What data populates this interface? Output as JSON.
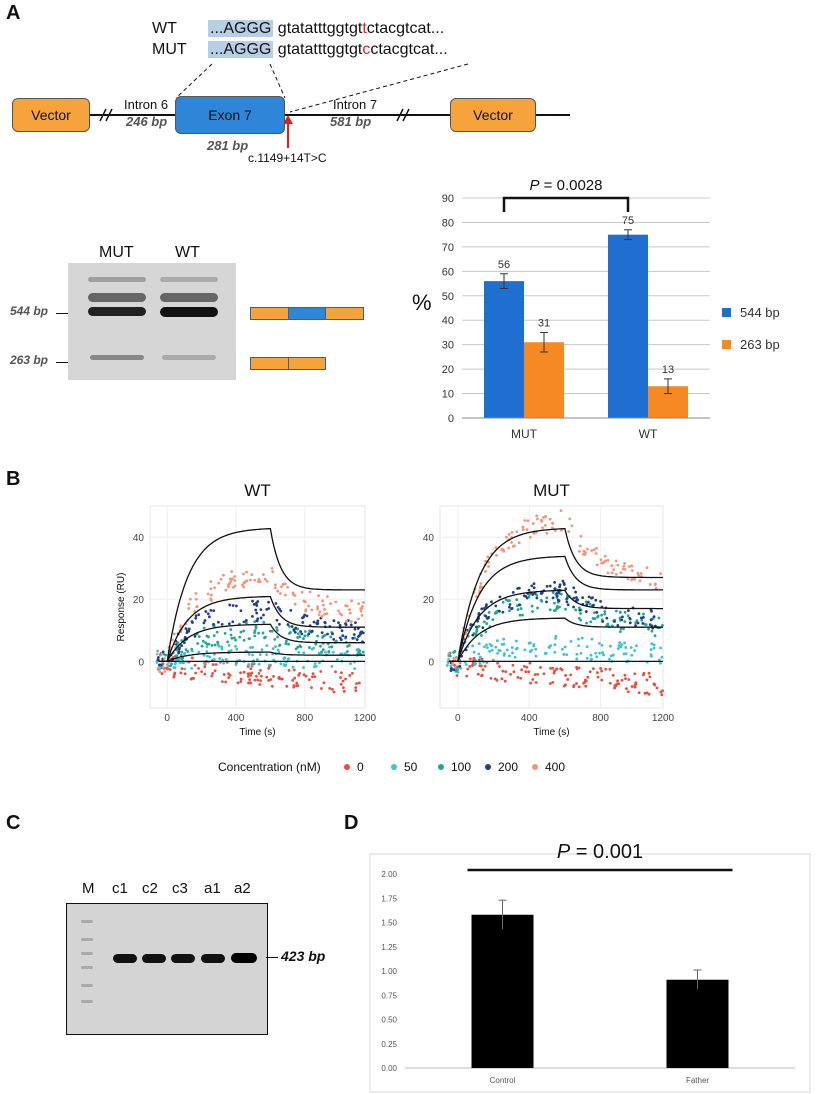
{
  "panels": {
    "a": "A",
    "b": "B",
    "c": "C",
    "d": "D"
  },
  "panel_a": {
    "seq_rows": [
      {
        "label": "WT",
        "exon": "...AGGG",
        "pre": "gtatatttggtgt",
        "variant": "t",
        "post": "ctacgtcat..."
      },
      {
        "label": "MUT",
        "exon": "...AGGG",
        "pre": "gtatatttggtgt",
        "variant": "c",
        "post": "ctacgtcat..."
      }
    ],
    "vector_left": "Vector",
    "vector_right": "Vector",
    "exon": "Exon 7",
    "intron6": "Intron 6",
    "intron6_size": "246 bp",
    "intron7": "Intron 7",
    "intron7_size": "581 bp",
    "exon_size": "281 bp",
    "variant_name": "c.1149+14T>C",
    "gel_lanes": [
      "MUT",
      "WT"
    ],
    "gel_size_544": "544 bp",
    "gel_size_263": "263 bp",
    "colors": {
      "vector": "#f5a33a",
      "exon": "#2f85d8",
      "red": "#e02020"
    }
  },
  "chart_data": [
    {
      "type": "bar",
      "title": "",
      "annotation": "P = 0.0028",
      "p_label": "P",
      "p_value": "= 0.0028",
      "categories": [
        "MUT",
        "WT"
      ],
      "ylabel": "%",
      "ylim": [
        0,
        90
      ],
      "yticks": [
        "0",
        "10",
        "20",
        "30",
        "40",
        "50",
        "60",
        "70",
        "80",
        "90"
      ],
      "series": [
        {
          "name": "544 bp",
          "values": [
            56,
            75
          ],
          "errors": [
            3,
            2
          ],
          "color": "#1f6fd1"
        },
        {
          "name": "263 bp",
          "values": [
            31,
            13
          ],
          "errors": [
            4,
            3
          ],
          "color": "#f58a25"
        }
      ],
      "data_labels": [
        "56",
        "75",
        "31",
        "13"
      ],
      "legend": "right"
    },
    {
      "type": "scatter",
      "title": "WT",
      "xlabel": "Time (s)",
      "ylabel": "Response (RU)",
      "xlim": [
        -100,
        1150
      ],
      "ylim": [
        -15,
        50
      ],
      "xticks": [
        "0",
        "400",
        "800",
        "1200"
      ],
      "yticks": [
        "0",
        "20",
        "40"
      ],
      "legend_title": "Concentration (nM)",
      "concentrations": [
        "0",
        "50",
        "100",
        "200",
        "400"
      ],
      "series_plateaus": [
        -7,
        2,
        10,
        17,
        28
      ],
      "fit_plateaus": [
        0,
        3,
        12,
        21,
        43
      ],
      "fit_ends": [
        0,
        2,
        6,
        11,
        23
      ]
    },
    {
      "type": "scatter",
      "title": "MUT",
      "xlabel": "Time (s)",
      "ylabel": "",
      "xlim": [
        -100,
        1150
      ],
      "ylim": [
        -15,
        50
      ],
      "xticks": [
        "0",
        "400",
        "800",
        "1200"
      ],
      "yticks": [
        "0",
        "20",
        "40"
      ],
      "series_plateaus": [
        -7,
        5,
        20,
        23,
        46
      ],
      "fit_plateaus": [
        0,
        14,
        23,
        34,
        43
      ],
      "fit_ends": [
        0,
        11,
        17,
        23,
        27
      ]
    },
    {
      "type": "bar",
      "title": "",
      "annotation": "P = 0.001",
      "p_label": "P",
      "p_value": "= 0.001",
      "categories": [
        "Control",
        "Father"
      ],
      "values": [
        1.58,
        0.91
      ],
      "errors": [
        0.15,
        0.1
      ],
      "ylim": [
        0,
        2
      ],
      "yticks": [
        "0.00",
        "0.25",
        "0.50",
        "0.75",
        "1.00",
        "1.25",
        "1.50",
        "1.75",
        "2.00"
      ],
      "color": "#000000"
    }
  ],
  "panel_b": {
    "legend_colors": [
      "#f04a3a",
      "#39c3d6",
      "#1ea894",
      "#1f3f8c",
      "#f5937a"
    ]
  },
  "panel_c": {
    "lanes": [
      "M",
      "c1",
      "c2",
      "c3",
      "a1",
      "a2"
    ],
    "band_size": "423 bp"
  }
}
